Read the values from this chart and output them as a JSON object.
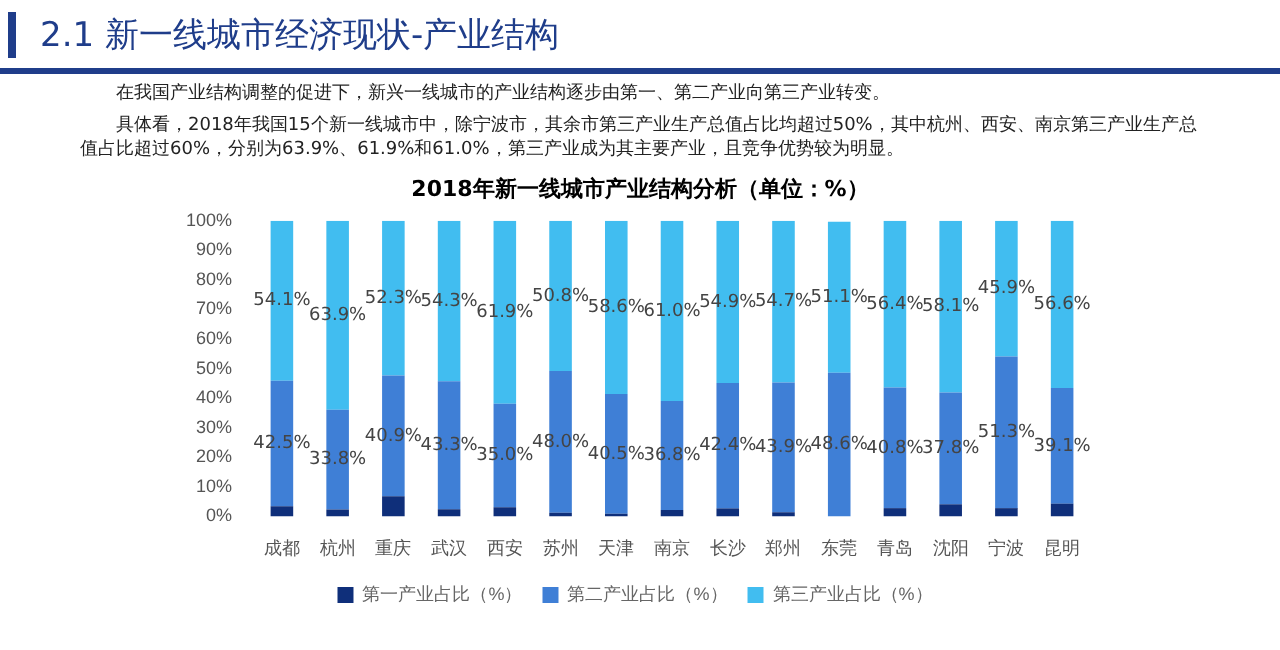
{
  "chart_data": {
    "type": "bar",
    "stacked": true,
    "title": "2018年新一线城市产业结构分析（单位：%）",
    "annotations": [
      "2.1  新一线城市经济现状-产业结构",
      "在我国产业结构调整的促进下，新兴一线城市的产业结构逐步由第一、第二产业向第三产业转变。",
      "具体看，2018年我国15个新一线城市中，除宁波市，其余市第三产业生产总值占比均超过50%，其中杭州、西安、南京第三产业生产总值占比超过60%，分别为63.9%、61.9%和61.0%，第三产业成为其主要产业，且竞争优势较为明显。"
    ],
    "categories": [
      "成都",
      "杭州",
      "重庆",
      "武汉",
      "西安",
      "苏州",
      "天津",
      "南京",
      "长沙",
      "郑州",
      "东莞",
      "青岛",
      "沈阳",
      "宁波",
      "昆明"
    ],
    "series": [
      {
        "name": "第一产业占比（%）",
        "color": "#0f2f7a",
        "values": [
          3.4,
          2.3,
          6.8,
          2.4,
          3.1,
          1.2,
          0.9,
          2.2,
          2.7,
          1.4,
          null,
          2.8,
          4.1,
          2.8,
          4.3
        ],
        "value_labels": [
          null,
          null,
          null,
          null,
          null,
          null,
          null,
          null,
          null,
          null,
          null,
          null,
          null,
          null,
          null
        ]
      },
      {
        "name": "第二产业占比（%）",
        "color": "#3f7fd6",
        "values": [
          42.5,
          33.8,
          40.9,
          43.3,
          35.0,
          48.0,
          40.5,
          36.8,
          42.4,
          43.9,
          48.6,
          40.8,
          37.8,
          51.3,
          39.1
        ],
        "value_labels": [
          "42.5%",
          "33.8%",
          "40.9%",
          "43.3%",
          "35.0%",
          "48.0%",
          "40.5%",
          "36.8%",
          "42.4%",
          "43.9%",
          "48.6%",
          "40.8%",
          "37.8%",
          "51.3%",
          "39.1%"
        ]
      },
      {
        "name": "第三产业占比（%）",
        "color": "#41bdf0",
        "values": [
          54.1,
          63.9,
          52.3,
          54.3,
          61.9,
          50.8,
          58.6,
          61.0,
          54.9,
          54.7,
          51.1,
          56.4,
          58.1,
          45.9,
          56.6
        ],
        "value_labels": [
          "54.1%",
          "63.9%",
          "52.3%",
          "54.3%",
          "61.9%",
          "50.8%",
          "58.6%",
          "61.0%",
          "54.9%",
          "54.7%",
          "51.1%",
          "56.4%",
          "58.1%",
          "45.9%",
          "56.6%"
        ]
      }
    ],
    "ylim": [
      0,
      100
    ],
    "yticks": [
      {
        "value": 0,
        "label": "0%"
      },
      {
        "value": 10,
        "label": "10%"
      },
      {
        "value": 20,
        "label": "20%"
      },
      {
        "value": 30,
        "label": "30%"
      },
      {
        "value": 40,
        "label": "40%"
      },
      {
        "value": 50,
        "label": "50%"
      },
      {
        "value": 60,
        "label": "60%"
      },
      {
        "value": 70,
        "label": "70%"
      },
      {
        "value": 80,
        "label": "80%"
      },
      {
        "value": 90,
        "label": "90%"
      },
      {
        "value": 100,
        "label": "100%"
      }
    ],
    "grid": false,
    "legend": "bottom"
  }
}
